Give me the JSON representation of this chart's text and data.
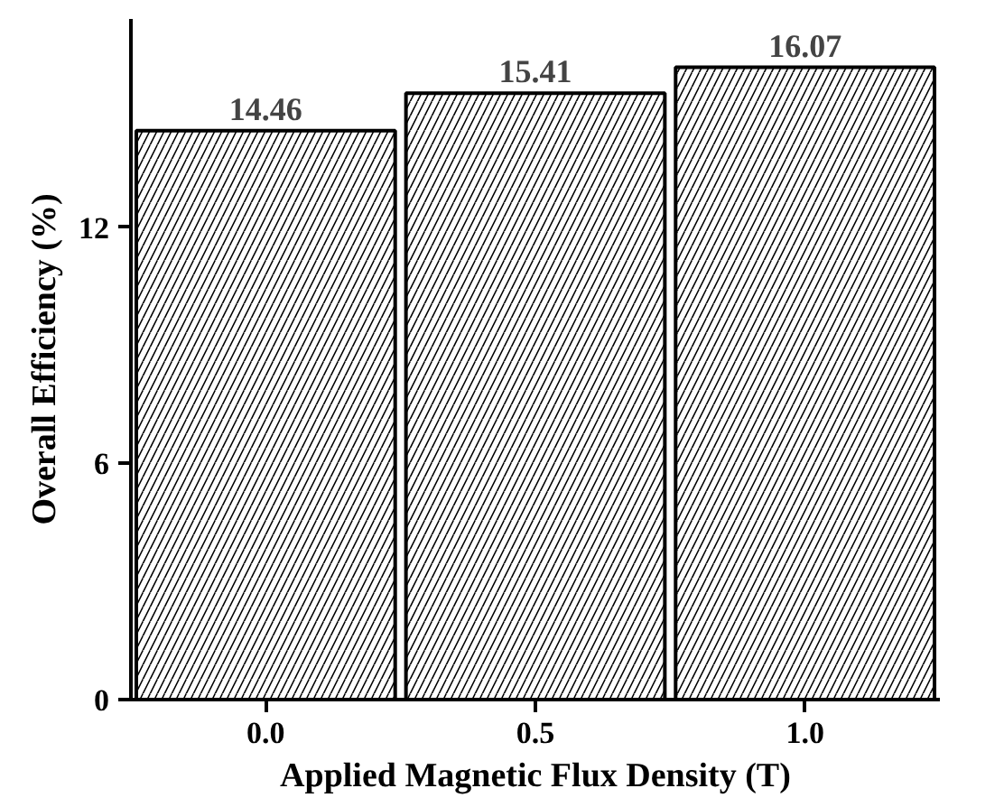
{
  "chart_data": {
    "type": "bar",
    "xlabel": "Applied Magnetic Flux Density (T)",
    "ylabel": "Overall Efficiency (%)",
    "categories": [
      "0.0",
      "0.5",
      "1.0"
    ],
    "values": [
      14.46,
      15.41,
      16.07
    ],
    "color": "#ffffff",
    "ylim": [
      0,
      17.3
    ],
    "yticks": [
      0,
      6,
      12
    ],
    "data_labels": true,
    "grid": false
  }
}
